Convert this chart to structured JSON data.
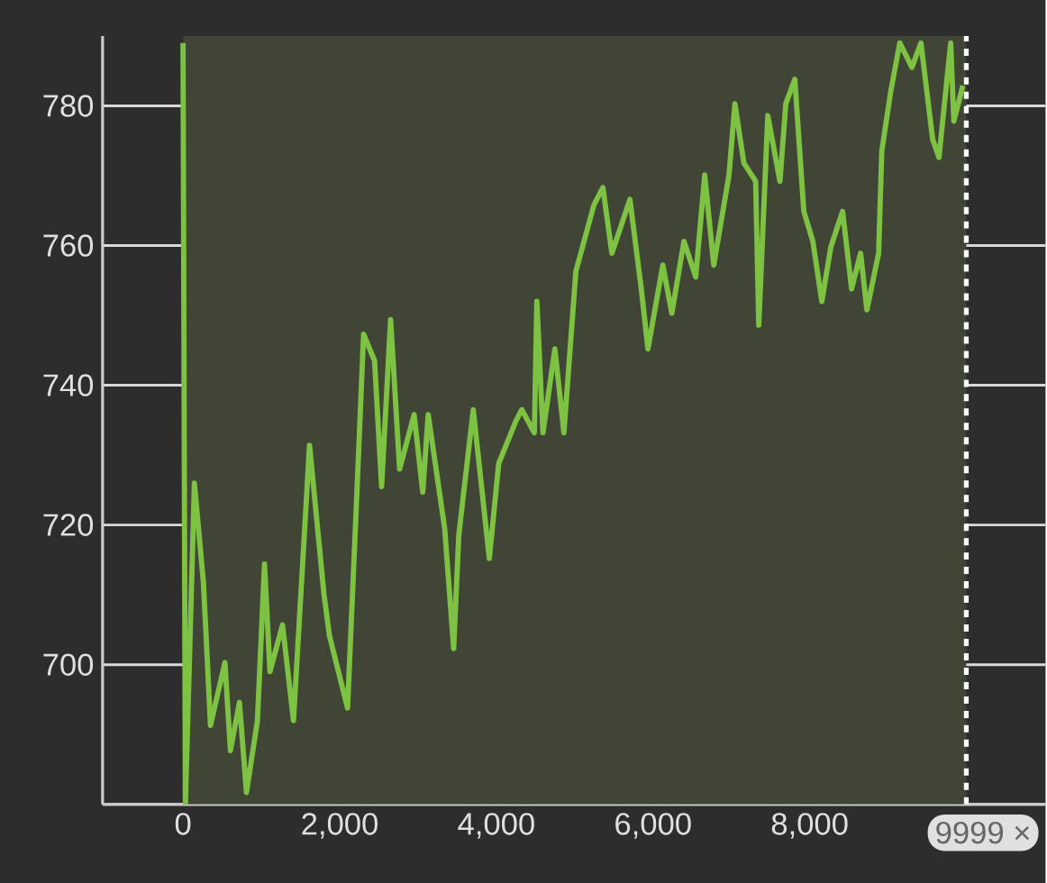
{
  "chart_data": {
    "type": "line",
    "x": [
      0,
      30,
      145,
      260,
      305,
      350,
      535,
      605,
      720,
      810,
      950,
      1040,
      1110,
      1270,
      1410,
      1615,
      1800,
      1870,
      2100,
      2210,
      2305,
      2445,
      2535,
      2650,
      2765,
      2950,
      3060,
      3130,
      3340,
      3455,
      3520,
      3705,
      3910,
      4030,
      4250,
      4325,
      4485,
      4517,
      4595,
      4747,
      4862,
      5015,
      5245,
      5360,
      5475,
      5705,
      5850,
      5935,
      6125,
      6240,
      6395,
      6545,
      6660,
      6775,
      6970,
      7045,
      7160,
      7310,
      7350,
      7465,
      7620,
      7695,
      7810,
      7925,
      8040,
      8155,
      8270,
      8420,
      8535,
      8650,
      8730,
      8880,
      8920,
      9035,
      9150,
      9305,
      9420,
      9570,
      9650,
      9800,
      9840,
      9955
    ],
    "series": [
      {
        "color": "#7dc242",
        "values": [
          789,
          680,
          726,
          711.8,
          701.8,
          691.3,
          700.3,
          687.7,
          694.6,
          681.7,
          692,
          714.4,
          699,
          705.7,
          692,
          731.4,
          710,
          704.1,
          693.8,
          722.1,
          747.3,
          743.5,
          725.5,
          749.4,
          728,
          735.8,
          724.7,
          735.8,
          719.5,
          702.3,
          718.5,
          736.5,
          715.2,
          728.8,
          734.9,
          736.5,
          733.2,
          752,
          733.2,
          745.2,
          733.2,
          756.3,
          765.8,
          768.3,
          758.9,
          766.6,
          753.8,
          745.2,
          757.2,
          750.3,
          760.6,
          755.5,
          770.1,
          757.2,
          770.1,
          780.3,
          771.8,
          769.2,
          748.6,
          778.6,
          769.2,
          780.3,
          783.8,
          764.9,
          760.6,
          752,
          759.8,
          764.9,
          753.8,
          758.9,
          750.8,
          758.9,
          773.5,
          782.1,
          789,
          785.5,
          789,
          775.2,
          772.6,
          789,
          777.8,
          782.9
        ]
      }
    ],
    "xlim": [
      -1027,
      11011
    ],
    "ylim": [
      680,
      790
    ],
    "xticks": [
      0,
      {
        "value": 2000,
        "label": "2,000"
      },
      {
        "value": 4000,
        "label": "4,000"
      },
      {
        "value": 6000,
        "label": "6,000"
      },
      {
        "value": 8000,
        "label": "8,000"
      }
    ],
    "yticks": [
      {
        "value": 680,
        "label": null
      },
      700,
      720,
      740,
      760,
      780
    ],
    "grid": "y",
    "marker": "none",
    "line_style": "solid",
    "bands": [
      {
        "axis": "x",
        "from": 0,
        "to": 9999,
        "color": "#404536"
      }
    ],
    "ref_lines": [
      {
        "axis": "x",
        "value": 9999,
        "label": "9999 ×",
        "line_style": "dashed",
        "color": "#ffffff"
      }
    ]
  }
}
